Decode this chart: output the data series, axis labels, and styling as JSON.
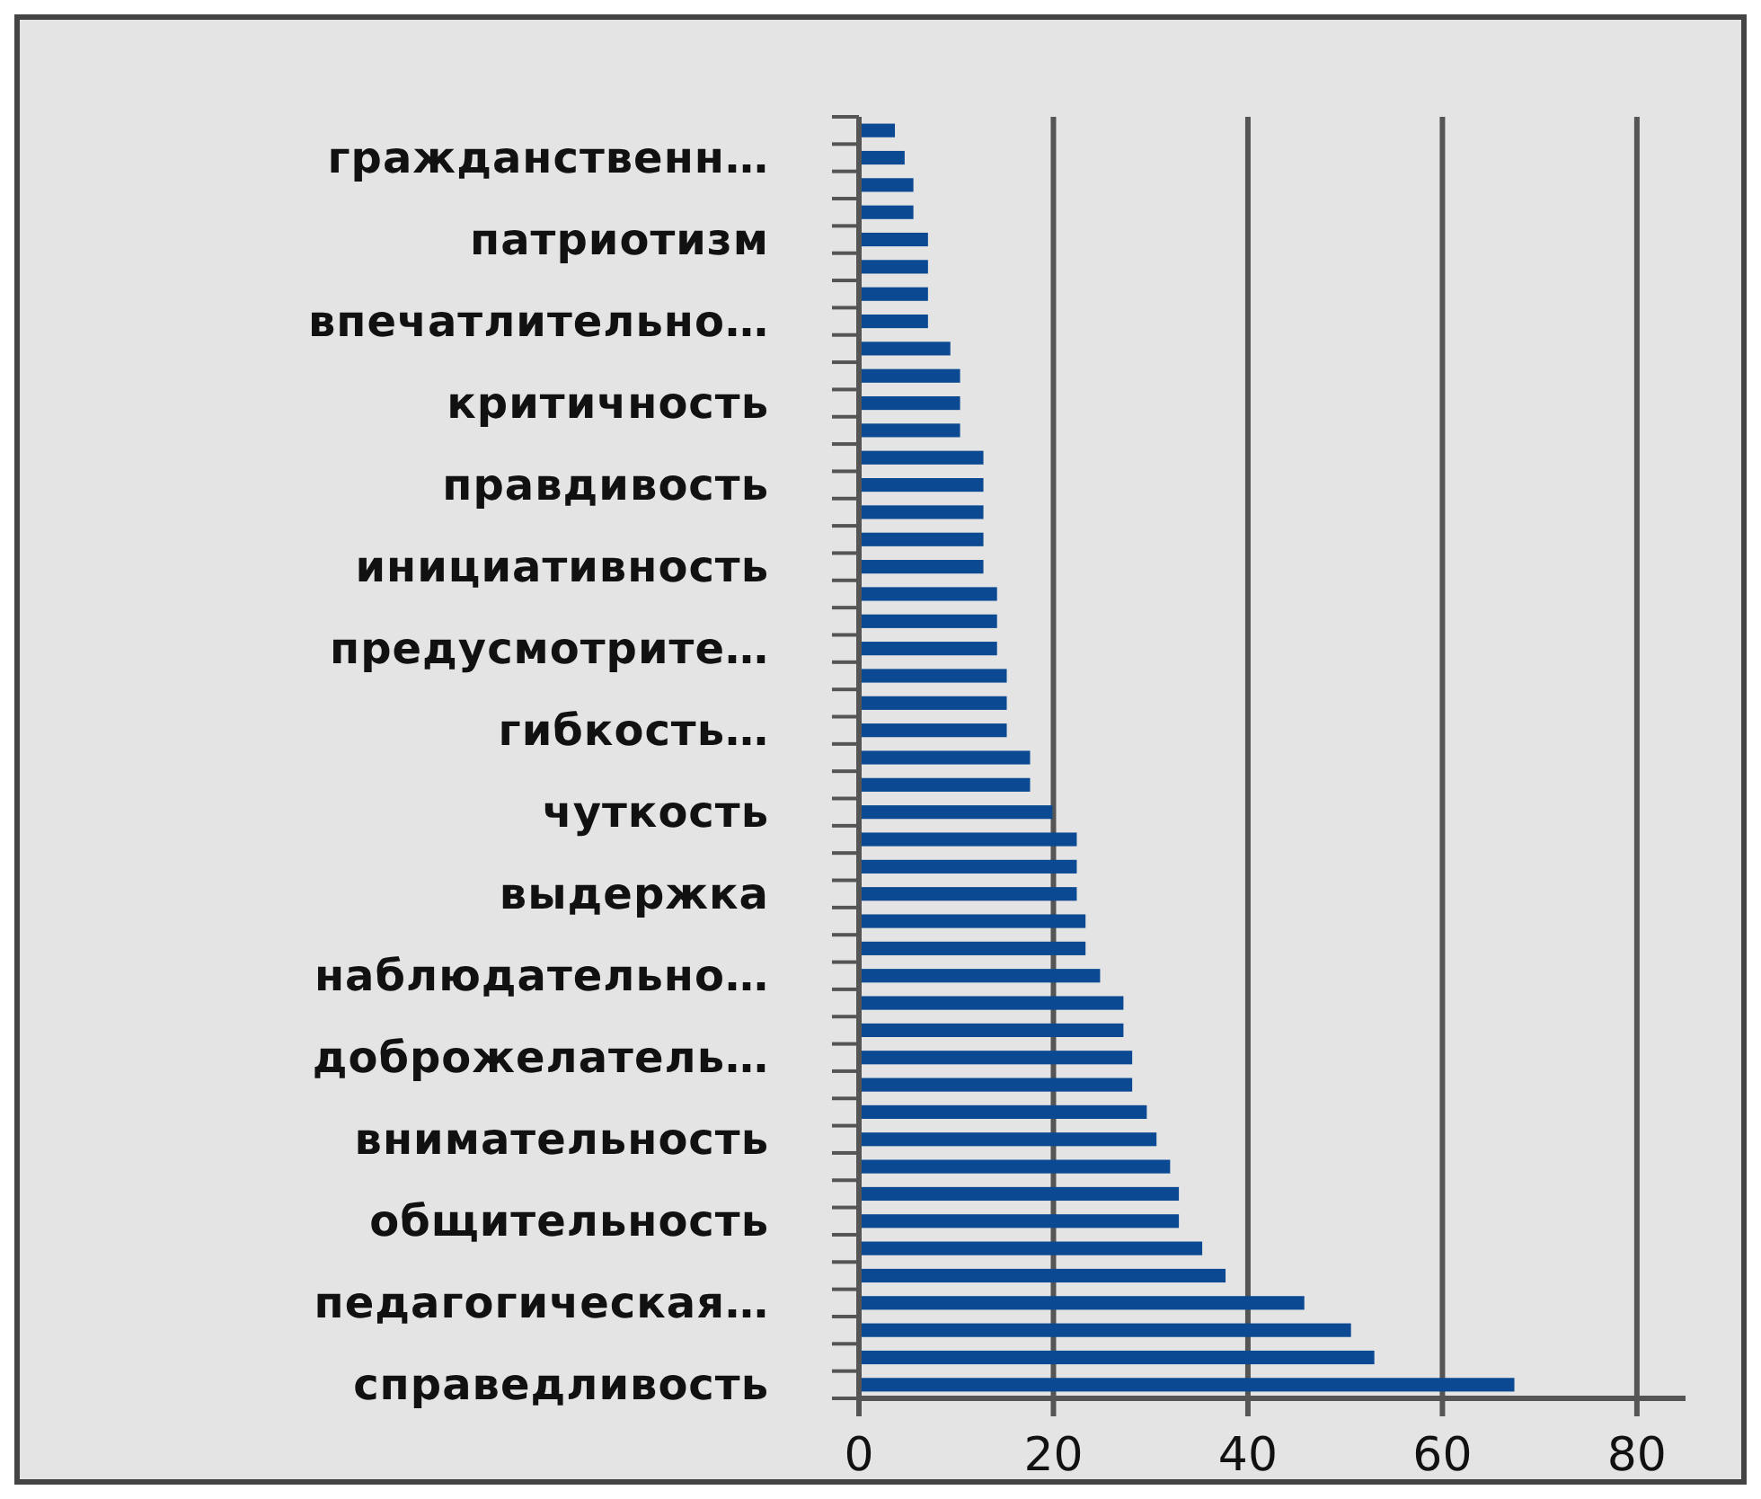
{
  "chart_data": {
    "type": "bar",
    "orientation": "horizontal",
    "categories": [
      null,
      "гражданственн…",
      null,
      null,
      "патриотизм",
      null,
      null,
      "впечатлительно…",
      null,
      null,
      "критичность",
      null,
      null,
      "правдивость",
      null,
      null,
      "инициативность",
      null,
      null,
      "предусмотрите…",
      null,
      null,
      "гибкость…",
      null,
      null,
      "чуткость",
      null,
      null,
      "выдержка",
      null,
      null,
      "наблюдательно…",
      null,
      null,
      "доброжелатель…",
      null,
      null,
      "внимательность",
      null,
      null,
      "общительность",
      null,
      null,
      "педагогическая…",
      null,
      null,
      "справедливость"
    ],
    "values": [
      3.7,
      4.7,
      5.6,
      5.6,
      7.1,
      7.1,
      7.1,
      7.1,
      9.4,
      10.4,
      10.4,
      10.4,
      12.8,
      12.8,
      12.8,
      12.8,
      12.8,
      14.2,
      14.2,
      14.2,
      15.2,
      15.2,
      15.2,
      17.6,
      17.6,
      19.9,
      22.4,
      22.4,
      22.4,
      23.3,
      23.3,
      24.8,
      27.2,
      27.2,
      28.1,
      28.1,
      29.6,
      30.6,
      32,
      32.9,
      32.9,
      35.3,
      37.7,
      45.8,
      50.6,
      53,
      67.4
    ],
    "color": "#0b4a92",
    "xlim": [
      0,
      85
    ],
    "xticks": [
      0,
      20,
      40,
      60,
      80
    ],
    "grid": "x"
  }
}
